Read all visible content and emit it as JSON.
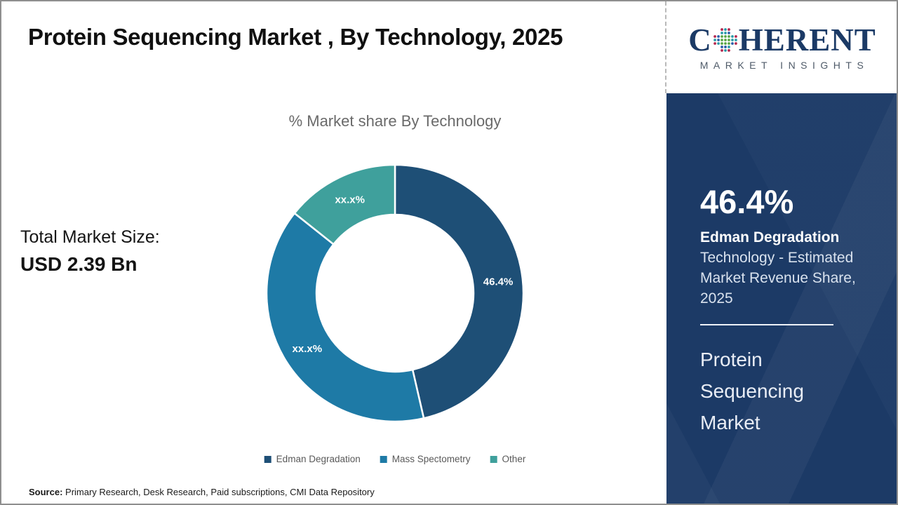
{
  "header": {
    "title": "Protein Sequencing  Market , By Technology, 2025"
  },
  "logo": {
    "brand_prefix": "C",
    "brand_suffix": "HERENT",
    "tagline": "MARKET INSIGHTS",
    "brand_color": "#1b3a66"
  },
  "chart_data": {
    "type": "pie",
    "variant": "donut",
    "title": "% Market share By Technology",
    "categories": [
      "Edman Degradation",
      "Mass Spectometry",
      "Other"
    ],
    "values": [
      46.4,
      39.3,
      14.3
    ],
    "slice_labels": [
      "46.4%",
      "xx.x%",
      "xx.x%"
    ],
    "colors": [
      "#1e4f76",
      "#1e7aa6",
      "#3fa09c"
    ],
    "hole_ratio": 0.61,
    "start_angle_deg": 0,
    "legend_position": "bottom",
    "grid": false
  },
  "left_panel": {
    "total_label": "Total Market Size:",
    "total_value": "USD 2.39 Bn"
  },
  "sidebar": {
    "stat_value": "46.4%",
    "stat_title": "Edman Degradation",
    "stat_description": "Technology - Estimated Market Revenue Share, 2025",
    "panel_title": "Protein Sequencing Market",
    "bg_color": "#1c3a66"
  },
  "footer": {
    "source_label": "Source:",
    "source_text": "Primary Research, Desk Research, Paid subscriptions, CMI Data Repository"
  }
}
